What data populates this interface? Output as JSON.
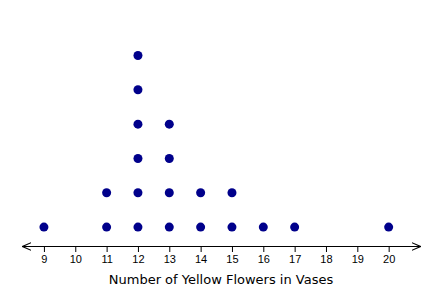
{
  "chart_data": {
    "type": "dot_plot",
    "x": [
      9,
      10,
      11,
      12,
      13,
      14,
      15,
      16,
      17,
      18,
      19,
      20
    ],
    "values": [
      1,
      0,
      2,
      6,
      4,
      2,
      2,
      1,
      1,
      0,
      0,
      1
    ],
    "color": "#00008B",
    "xlim": [
      8.3,
      21.0
    ],
    "xticks": [
      9,
      10,
      11,
      12,
      13,
      14,
      15,
      16,
      17,
      18,
      19,
      20
    ],
    "xlabel": "Number of Yellow Flowers in Vases",
    "tick_labels": "x",
    "grid": false
  }
}
